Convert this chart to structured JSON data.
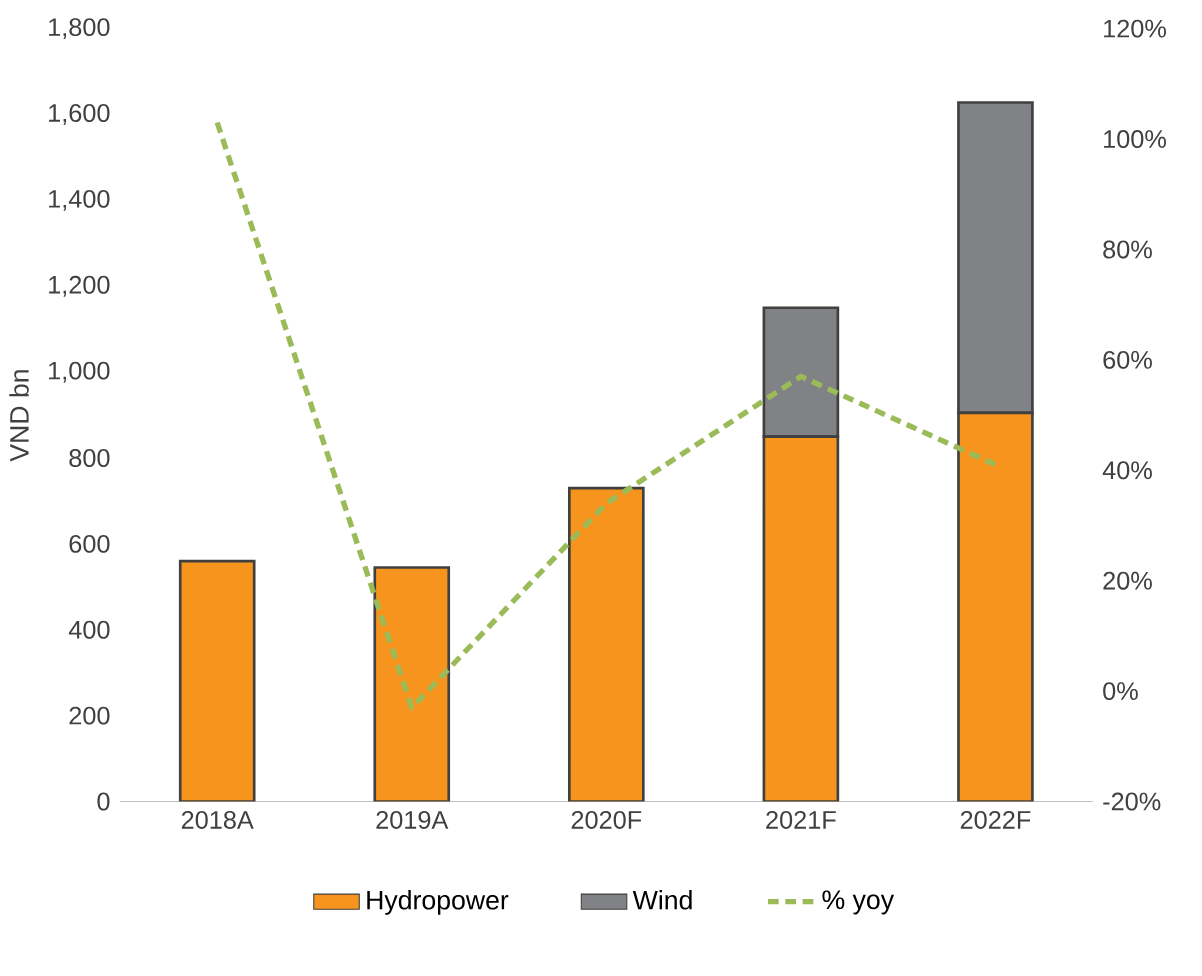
{
  "chart_data": {
    "type": "bar",
    "stacked": true,
    "legend": "bottom",
    "ylabel": "VND bn",
    "categories": [
      "2018A",
      "2019A",
      "2020F",
      "2021F",
      "2022F"
    ],
    "series": [
      {
        "name": "Hydropower",
        "color": "#f7941d",
        "values": [
          560,
          545,
          730,
          850,
          905
        ]
      },
      {
        "name": "Wind",
        "color": "#808285",
        "values": [
          null,
          null,
          null,
          300,
          723
        ]
      },
      {
        "name": "% yoy",
        "type": "line",
        "axis": "y2",
        "line_style": "dashed",
        "color": "#9bbb59",
        "values": [
          103,
          -3,
          34,
          57,
          41
        ]
      }
    ],
    "ylim": [
      0,
      1800
    ],
    "yticks": [
      0,
      200,
      400,
      600,
      800,
      {
        "value": 1000,
        "label": "1,000"
      },
      {
        "value": 1200,
        "label": "1,200"
      },
      {
        "value": 1400,
        "label": "1,400"
      },
      {
        "value": 1600,
        "label": "1,600"
      },
      {
        "value": 1800,
        "label": "1,800"
      }
    ],
    "y2lim": [
      -20,
      120
    ],
    "y2ticks": [
      {
        "value": -20,
        "label": "-20%"
      },
      {
        "value": 0,
        "label": "0%"
      },
      {
        "value": 20,
        "label": "20%"
      },
      {
        "value": 40,
        "label": "40%"
      },
      {
        "value": 60,
        "label": "60%"
      },
      {
        "value": 80,
        "label": "80%"
      },
      {
        "value": 100,
        "label": "100%"
      },
      {
        "value": 120,
        "label": "120%"
      }
    ]
  }
}
